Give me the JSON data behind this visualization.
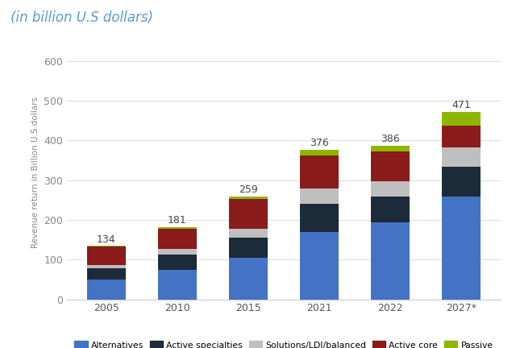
{
  "years": [
    "2005",
    "2010",
    "2015",
    "2021",
    "2022",
    "2027*"
  ],
  "totals": [
    134,
    181,
    259,
    376,
    386,
    471
  ],
  "segments": {
    "Alternatives": [
      50,
      75,
      105,
      170,
      193,
      258
    ],
    "Active specialties": [
      28,
      38,
      50,
      70,
      65,
      75
    ],
    "Solutions/LDI/balanced": [
      8,
      13,
      22,
      40,
      40,
      50
    ],
    "Active core": [
      47,
      52,
      75,
      82,
      75,
      55
    ],
    "Passive": [
      1,
      3,
      7,
      14,
      13,
      33
    ]
  },
  "colors": {
    "Alternatives": "#4472c4",
    "Active specialties": "#1c2b3a",
    "Solutions/LDI/balanced": "#c0bfbf",
    "Active core": "#8b1a1a",
    "Passive": "#8db600"
  },
  "ylabel": "Revenue return in Billion U.S dollars",
  "title": "(in billion U.S dollars)",
  "ylim": [
    0,
    640
  ],
  "yticks": [
    0,
    100,
    200,
    300,
    400,
    500,
    600
  ],
  "background_color": "#ffffff",
  "plot_bg_color": "#ffffff",
  "title_color": "#5b9bd5",
  "title_fontsize": 12,
  "label_fontsize": 9,
  "tick_fontsize": 9,
  "bar_width": 0.55
}
